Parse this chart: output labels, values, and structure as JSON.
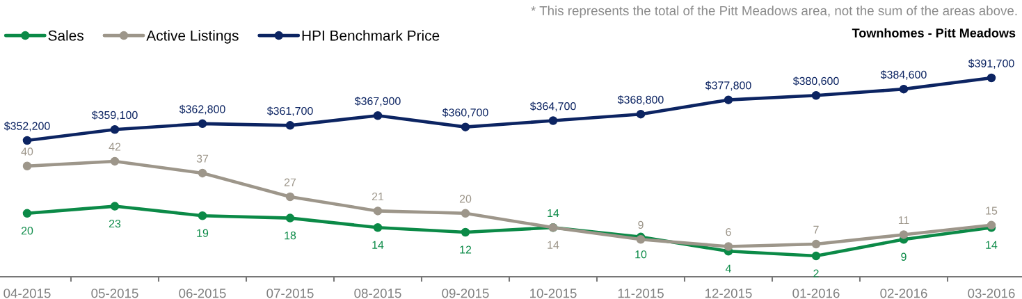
{
  "chart_data": [
    {
      "type": "line",
      "title": "Townhomes - Pitt Meadows",
      "annotations": [
        "* This represents the total of the Pitt Meadows area, not the sum of the areas above."
      ],
      "categories": [
        null,
        null,
        null,
        null,
        null,
        null,
        null,
        null,
        null,
        null,
        null,
        null
      ],
      "series": [
        {
          "name": "HPI Benchmark Price",
          "color": "#0c2462",
          "values": [
            352200,
            359100,
            362800,
            361700,
            367900,
            360700,
            364700,
            368800,
            377800,
            380600,
            384600,
            391700
          ],
          "value_labels": [
            "$352,200",
            "$359,100",
            "$362,800",
            "$361,700",
            "$367,900",
            "$360,700",
            "$364,700",
            "$368,800",
            "$377,800",
            "$380,600",
            "$384,600",
            "$391,700"
          ]
        }
      ],
      "tick_labels": false,
      "legend": "top left",
      "grid": false,
      "marker": "circle",
      "line_style": "solid"
    },
    {
      "type": "line",
      "categories": [
        "04-2015",
        "05-2015",
        "06-2015",
        "07-2015",
        "08-2015",
        "09-2015",
        "10-2015",
        "11-2015",
        "12-2015",
        "01-2016",
        "02-2016",
        "03-2016"
      ],
      "series": [
        {
          "name": "Sales",
          "color": "#0b8a47",
          "values": [
            20,
            23,
            19,
            18,
            14,
            12,
            14,
            10,
            4,
            2,
            9,
            14
          ],
          "value_labels": [
            "20",
            "23",
            "19",
            "18",
            "14",
            "12",
            "14",
            "10",
            "4",
            "2",
            "9",
            "14"
          ]
        },
        {
          "name": "Active Listings",
          "color": "#9d968a",
          "values": [
            40,
            42,
            37,
            27,
            21,
            20,
            14,
            9,
            6,
            7,
            11,
            15
          ],
          "value_labels": [
            "40",
            "42",
            "37",
            "27",
            "21",
            "20",
            "14",
            "9",
            "6",
            "7",
            "11",
            "15"
          ]
        }
      ],
      "tick_labels": "x",
      "legend": "top left",
      "grid": false,
      "marker": "circle",
      "line_style": "solid"
    }
  ]
}
